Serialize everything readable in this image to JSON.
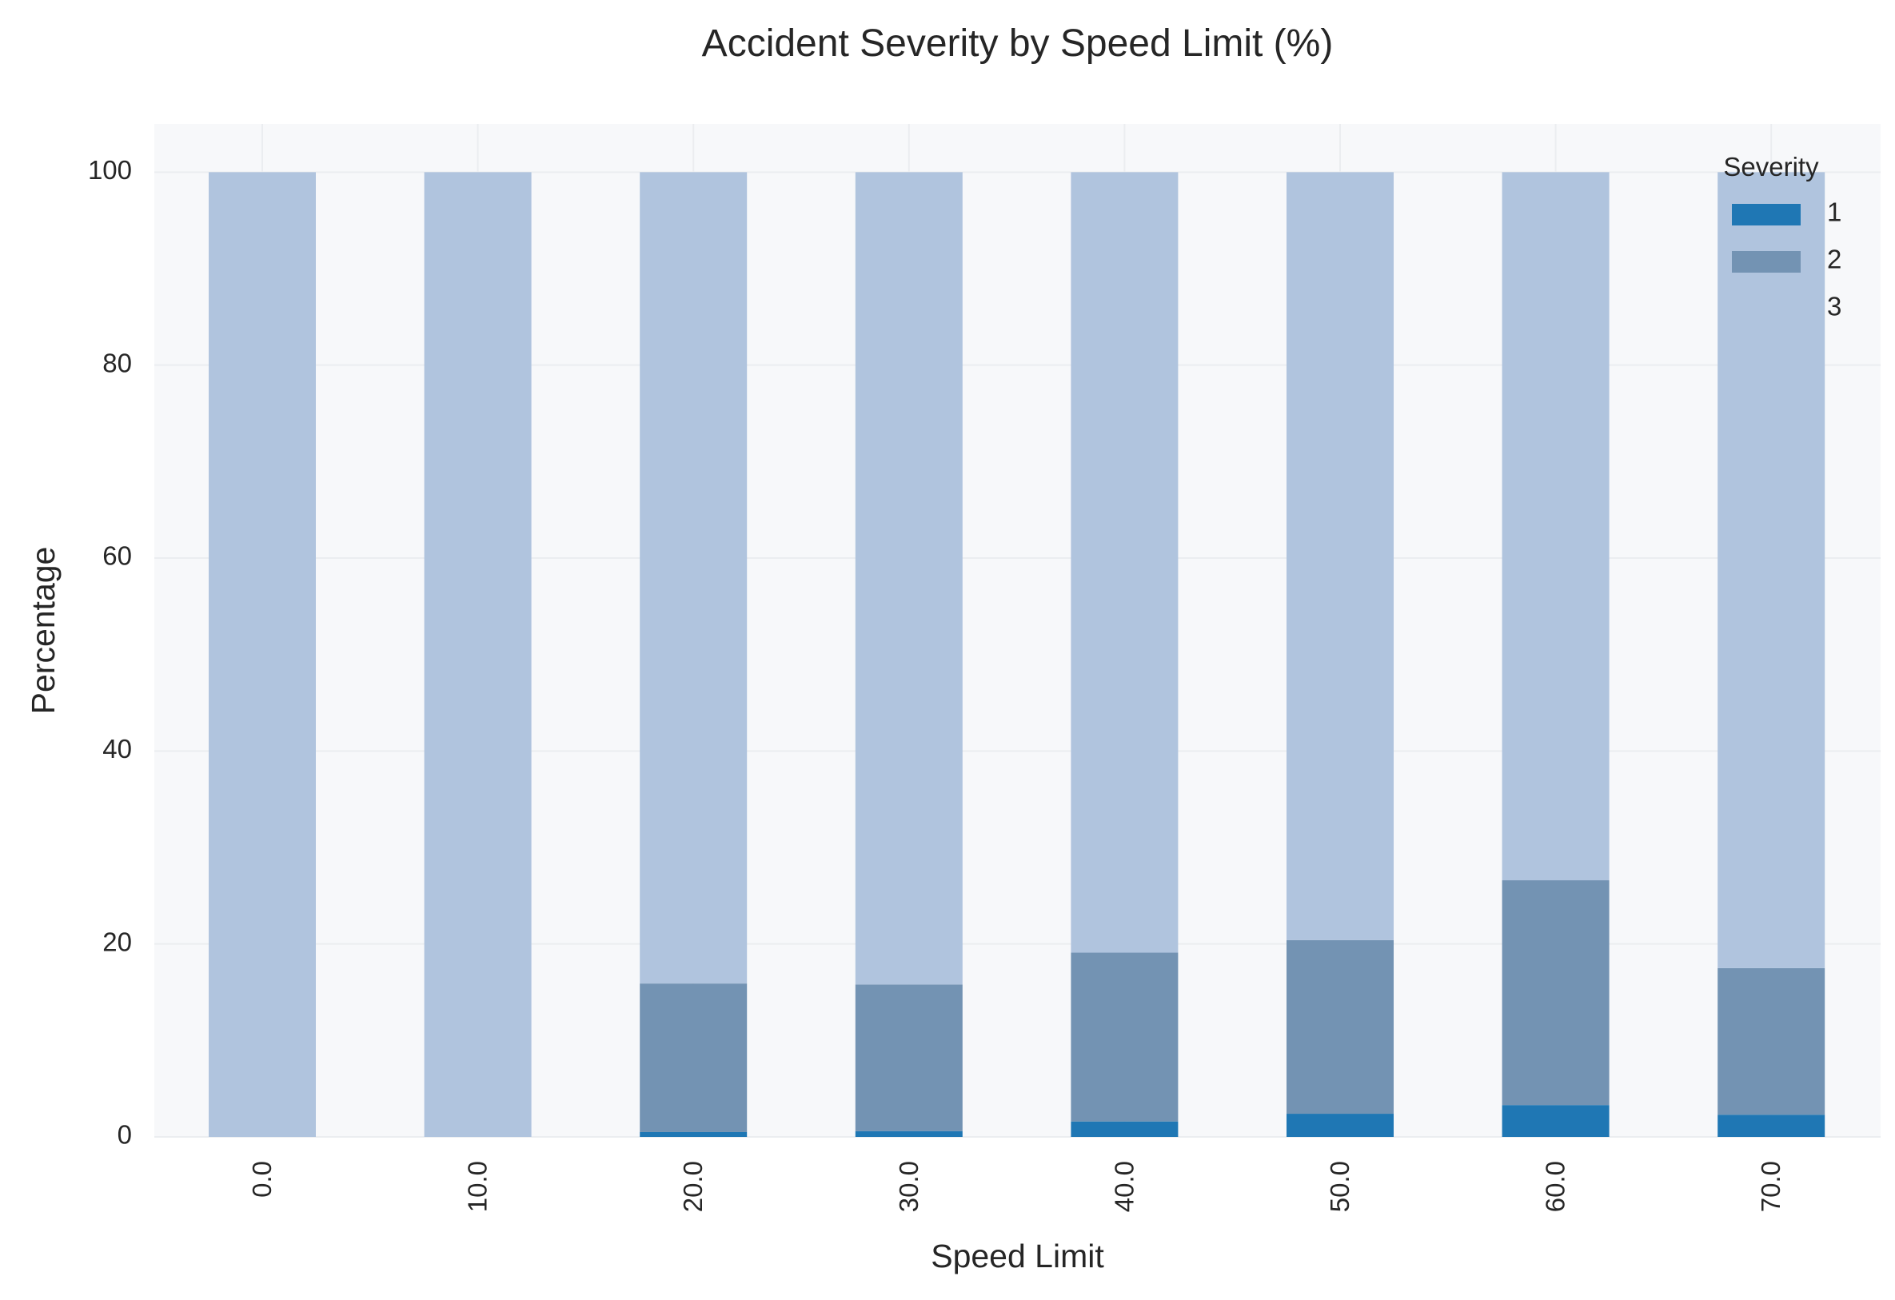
{
  "chart_data": {
    "type": "bar",
    "stacked": true,
    "title": "Accident Severity by Speed Limit (%)",
    "xlabel": "Speed Limit",
    "ylabel": "Percentage",
    "categories": [
      "0.0",
      "10.0",
      "20.0",
      "30.0",
      "40.0",
      "50.0",
      "60.0",
      "70.0"
    ],
    "x_tick_rotation": 90,
    "ylim": [
      0,
      105
    ],
    "yticks": [
      0,
      20,
      40,
      60,
      80,
      100
    ],
    "grid": true,
    "legend": {
      "title": "Severity",
      "placement": "top-right"
    },
    "series": [
      {
        "name": "1",
        "color": "#1f77b4",
        "values": [
          0,
          0,
          0.5,
          0.6,
          1.6,
          2.4,
          3.3,
          2.3
        ]
      },
      {
        "name": "2",
        "color": "#7393b3",
        "values": [
          0,
          0,
          15.4,
          15.2,
          17.5,
          18.0,
          23.3,
          15.2
        ]
      },
      {
        "name": "3",
        "color": "#b0c4de",
        "values": [
          100,
          100,
          84.1,
          84.2,
          80.9,
          79.6,
          73.4,
          82.5
        ]
      }
    ],
    "background_color": "#f7f8fa",
    "grid_color": "#ebedf0"
  }
}
